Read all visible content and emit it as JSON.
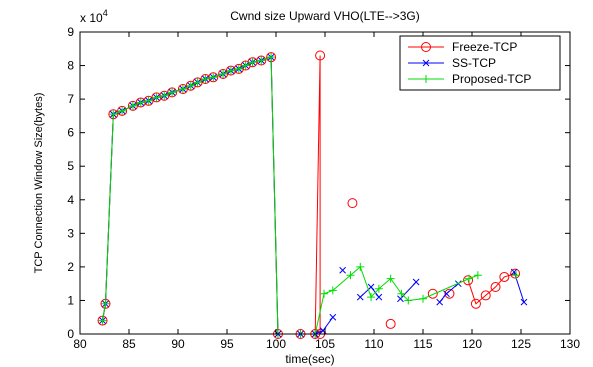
{
  "chart_data": {
    "type": "line",
    "title": "Cwnd size Upward VHO(LTE-->3G)",
    "xlabel": "time(sec)",
    "ylabel": "TCP Connection Window Size(bytes)",
    "y_multiplier_label": "x 10",
    "y_multiplier_exp": "4",
    "xlim": [
      80,
      130
    ],
    "ylim": [
      0,
      9
    ],
    "xticks": [
      "80",
      "85",
      "90",
      "95",
      "100",
      "105",
      "110",
      "115",
      "120",
      "125",
      "130"
    ],
    "yticks": [
      "0",
      "1",
      "2",
      "3",
      "4",
      "5",
      "6",
      "7",
      "8",
      "9"
    ],
    "legend_position": "top-right",
    "grid": false,
    "series": [
      {
        "name": "Freeze-TCP",
        "color": "#ff0000",
        "marker": "circle",
        "segments": [
          [
            [
              82.3,
              0.4
            ],
            [
              82.6,
              0.9
            ],
            [
              83.4,
              6.55
            ],
            [
              84.3,
              6.65
            ],
            [
              85.4,
              6.8
            ],
            [
              86.2,
              6.9
            ],
            [
              87.0,
              6.95
            ],
            [
              87.8,
              7.05
            ],
            [
              88.6,
              7.1
            ],
            [
              89.4,
              7.2
            ],
            [
              90.5,
              7.3
            ],
            [
              91.3,
              7.4
            ],
            [
              92.0,
              7.5
            ],
            [
              92.8,
              7.6
            ],
            [
              93.6,
              7.65
            ],
            [
              94.6,
              7.75
            ],
            [
              95.4,
              7.85
            ],
            [
              96.2,
              7.9
            ],
            [
              96.9,
              8.0
            ],
            [
              97.6,
              8.1
            ],
            [
              98.5,
              8.15
            ],
            [
              99.5,
              8.25
            ],
            [
              100.2,
              0.0
            ],
            [
              102.5,
              0.0
            ],
            [
              104.0,
              0.0
            ],
            [
              104.5,
              8.3
            ],
            [
              104.5,
              0.0
            ]
          ],
          [
            [
              119.6,
              1.6
            ],
            [
              120.4,
              0.9
            ],
            [
              121.4,
              1.15
            ],
            [
              122.4,
              1.4
            ],
            [
              123.3,
              1.7
            ],
            [
              124.4,
              1.8
            ]
          ]
        ],
        "points": [
          [
            107.8,
            3.9
          ],
          [
            111.7,
            0.3
          ],
          [
            116.0,
            1.2
          ],
          [
            117.7,
            1.2
          ]
        ]
      },
      {
        "name": "SS-TCP",
        "color": "#0000ff",
        "marker": "x",
        "segments": [
          [
            [
              82.3,
              0.4
            ],
            [
              82.6,
              0.9
            ],
            [
              83.4,
              6.55
            ],
            [
              84.3,
              6.65
            ],
            [
              85.4,
              6.8
            ],
            [
              86.2,
              6.9
            ],
            [
              87.0,
              6.95
            ],
            [
              87.8,
              7.05
            ],
            [
              88.6,
              7.1
            ],
            [
              89.4,
              7.2
            ],
            [
              90.5,
              7.3
            ],
            [
              91.3,
              7.4
            ],
            [
              92.0,
              7.5
            ],
            [
              92.8,
              7.6
            ],
            [
              93.6,
              7.65
            ],
            [
              94.6,
              7.75
            ],
            [
              95.4,
              7.85
            ],
            [
              96.2,
              7.9
            ],
            [
              96.9,
              8.0
            ],
            [
              97.6,
              8.1
            ],
            [
              98.5,
              8.15
            ],
            [
              99.5,
              8.25
            ],
            [
              100.2,
              0.0
            ],
            [
              102.5,
              0.0
            ],
            [
              104.0,
              0.0
            ],
            [
              104.8,
              0.1
            ],
            [
              105.8,
              0.5
            ]
          ],
          [
            [
              106.8,
              1.9
            ]
          ],
          [
            [
              108.6,
              1.1
            ],
            [
              109.7,
              1.4
            ],
            [
              110.5,
              1.1
            ]
          ],
          [
            [
              112.7,
              1.05
            ],
            [
              114.3,
              1.55
            ]
          ],
          [
            [
              116.7,
              0.95
            ],
            [
              117.4,
              1.2
            ],
            [
              118.6,
              1.5
            ]
          ],
          [
            [
              124.3,
              1.85
            ],
            [
              125.3,
              0.95
            ]
          ]
        ],
        "points": []
      },
      {
        "name": "Proposed-TCP",
        "color": "#00dd00",
        "marker": "plus",
        "segments": [
          [
            [
              82.3,
              0.4
            ],
            [
              82.6,
              0.9
            ],
            [
              83.4,
              6.55
            ],
            [
              84.3,
              6.65
            ],
            [
              85.4,
              6.8
            ],
            [
              86.2,
              6.9
            ],
            [
              87.0,
              6.95
            ],
            [
              87.8,
              7.05
            ],
            [
              88.6,
              7.1
            ],
            [
              89.4,
              7.2
            ],
            [
              90.5,
              7.3
            ],
            [
              91.3,
              7.4
            ],
            [
              92.0,
              7.5
            ],
            [
              92.8,
              7.6
            ],
            [
              93.6,
              7.65
            ],
            [
              94.6,
              7.75
            ],
            [
              95.4,
              7.85
            ],
            [
              96.2,
              7.9
            ],
            [
              96.9,
              8.0
            ],
            [
              97.6,
              8.1
            ],
            [
              98.5,
              8.15
            ],
            [
              99.5,
              8.25
            ],
            [
              100.2,
              0.0
            ],
            [
              102.5,
              0.0
            ],
            [
              104.0,
              0.0
            ],
            [
              104.9,
              1.2
            ],
            [
              105.8,
              1.3
            ],
            [
              107.6,
              1.75
            ],
            [
              108.6,
              2.0
            ],
            [
              109.7,
              1.1
            ],
            [
              110.5,
              1.35
            ],
            [
              111.7,
              1.65
            ],
            [
              112.8,
              1.2
            ],
            [
              113.5,
              1.0
            ],
            [
              115.0,
              1.05
            ],
            [
              119.7,
              1.65
            ],
            [
              120.6,
              1.75
            ]
          ],
          [
            [
              124.5,
              1.75
            ]
          ]
        ],
        "points": []
      }
    ]
  }
}
